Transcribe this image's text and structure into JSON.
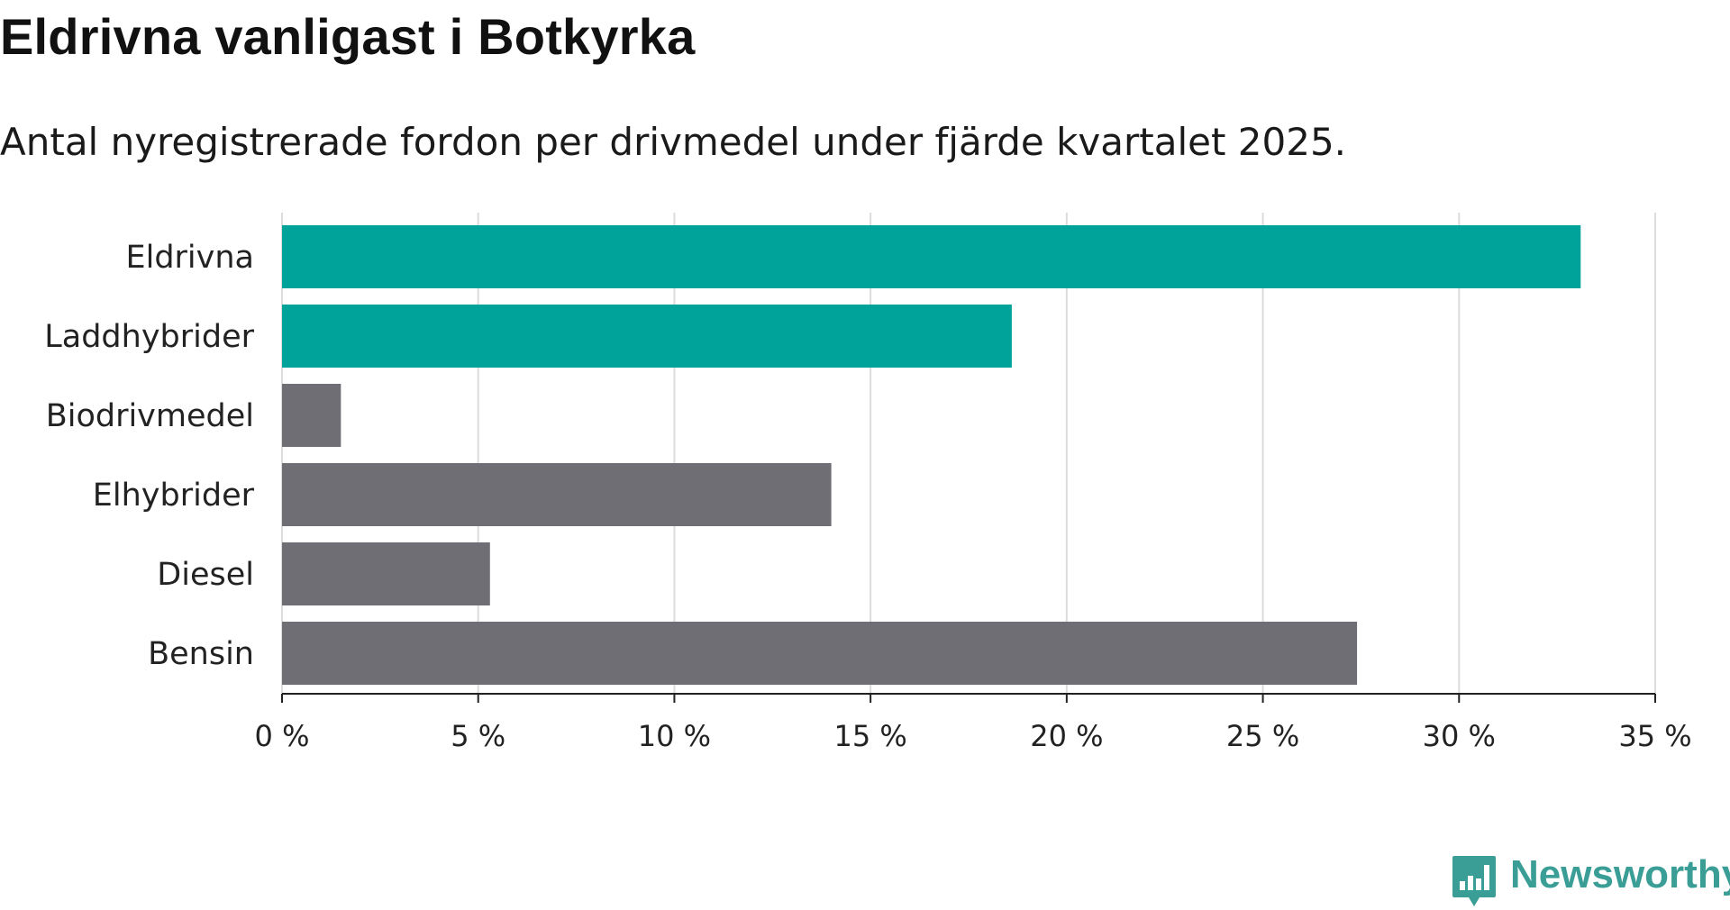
{
  "title": "Eldrivna vanligast i Botkyrka",
  "subtitle": "Antal nyregistrerade fordon per drivmedel under fjärde kvartalet 2025.",
  "brand": {
    "name": "Newsworthy",
    "color": "#3a9e96"
  },
  "chart_data": {
    "type": "bar",
    "orientation": "horizontal",
    "categories": [
      "Eldrivna",
      "Laddhybrider",
      "Biodrivmedel",
      "Elhybrider",
      "Diesel",
      "Bensin"
    ],
    "values": [
      33.1,
      18.6,
      1.5,
      14.0,
      5.3,
      27.4
    ],
    "colors": [
      "#00a39a",
      "#00a39a",
      "#6e6e74",
      "#6e6e74",
      "#6e6e74",
      "#6e6e74"
    ],
    "xlim": [
      0,
      35
    ],
    "xticks": [
      0,
      5,
      10,
      15,
      20,
      25,
      30,
      35
    ],
    "tick_labels": [
      "0 %",
      "5 %",
      "10 %",
      "15 %",
      "20 %",
      "25 %",
      "30 %",
      "35 %"
    ],
    "grid": true,
    "xlabel": "",
    "ylabel": ""
  }
}
